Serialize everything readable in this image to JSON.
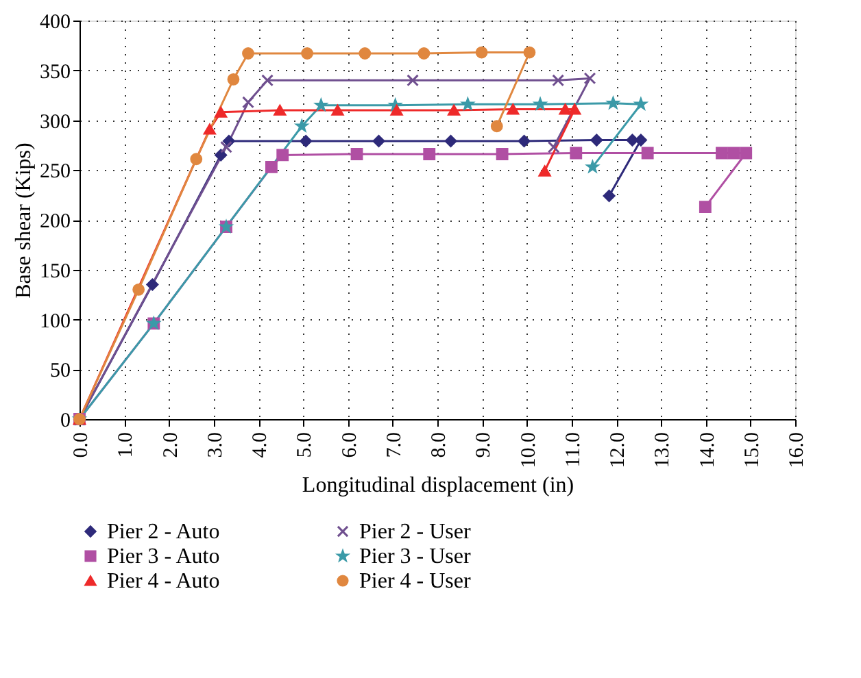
{
  "chart_data": {
    "type": "line",
    "xlabel": "Longitudinal displacement (in)",
    "ylabel": "Base shear (Kips)",
    "xlim": [
      0,
      16
    ],
    "ylim": [
      0,
      400
    ],
    "xticks": [
      {
        "value": 0,
        "label": "0.0"
      },
      {
        "value": 1,
        "label": "1.0"
      },
      {
        "value": 2,
        "label": "2.0"
      },
      {
        "value": 3,
        "label": "3.0"
      },
      {
        "value": 4,
        "label": "4.0"
      },
      {
        "value": 5,
        "label": "5.0"
      },
      {
        "value": 6,
        "label": "6.0"
      },
      {
        "value": 7,
        "label": "7.0"
      },
      {
        "value": 8,
        "label": "8.0"
      },
      {
        "value": 9,
        "label": "9.0"
      },
      {
        "value": 10,
        "label": "10.0"
      },
      {
        "value": 11,
        "label": "11.0"
      },
      {
        "value": 12,
        "label": "12.0"
      },
      {
        "value": 13,
        "label": "13.0"
      },
      {
        "value": 14,
        "label": "14.0"
      },
      {
        "value": 15,
        "label": "15.0"
      },
      {
        "value": 16,
        "label": "16.0"
      }
    ],
    "yticks": [
      0,
      50,
      100,
      150,
      200,
      250,
      300,
      350,
      400
    ],
    "grid": true,
    "legend": "bottom",
    "line_style": "solid",
    "series": [
      {
        "name": "Pier 2 - Auto",
        "color": "#2e2a7a",
        "marker": "diamond",
        "x": [
          0,
          1.63,
          3.16,
          3.34,
          5.06,
          6.69,
          8.3,
          9.94,
          11.56,
          12.36,
          12.55,
          11.84
        ],
        "values": [
          0,
          135,
          265,
          279,
          279,
          279,
          279,
          279,
          280,
          280,
          280,
          224
        ]
      },
      {
        "name": "Pier 2 - User",
        "color": "#6f4f8f",
        "marker": "cross",
        "x": [
          0,
          3.28,
          3.77,
          4.2,
          7.45,
          10.7,
          11.41,
          10.6
        ],
        "values": [
          0,
          273,
          318,
          340,
          340,
          340,
          342,
          273
        ]
      },
      {
        "name": "Pier 3 - Auto",
        "color": "#b04fa3",
        "marker": "square",
        "x": [
          0,
          1.66,
          3.28,
          4.29,
          4.54,
          6.2,
          7.82,
          9.45,
          11.1,
          12.7,
          14.36,
          14.63,
          14.9,
          13.99
        ],
        "values": [
          0,
          96,
          193,
          253,
          265,
          266,
          266,
          266,
          267,
          267,
          267,
          267,
          267,
          213
        ]
      },
      {
        "name": "Pier 3 - User",
        "color": "#3b9aa8",
        "marker": "star",
        "x": [
          0,
          1.66,
          3.28,
          4.97,
          5.4,
          7.06,
          8.68,
          10.3,
          11.93,
          12.55,
          11.47
        ],
        "values": [
          0,
          96,
          193,
          294,
          315,
          315,
          316,
          316,
          317,
          316,
          253
        ]
      },
      {
        "name": "Pier 4 - Auto",
        "color": "#ee2a2a",
        "marker": "triangle",
        "x": [
          0,
          2.91,
          3.16,
          4.48,
          5.77,
          7.09,
          8.37,
          9.69,
          10.86,
          11.07,
          10.4
        ],
        "values": [
          0,
          291,
          308,
          310,
          310,
          310,
          310,
          311,
          311,
          311,
          249
        ]
      },
      {
        "name": "Pier 4 - User",
        "color": "#e0873f",
        "marker": "circle",
        "x": [
          0,
          1.32,
          2.61,
          3.44,
          3.77,
          5.09,
          6.38,
          7.7,
          8.99,
          10.06,
          9.33
        ],
        "values": [
          0,
          130,
          261,
          341,
          367,
          367,
          367,
          367,
          368,
          368,
          294
        ]
      }
    ]
  }
}
